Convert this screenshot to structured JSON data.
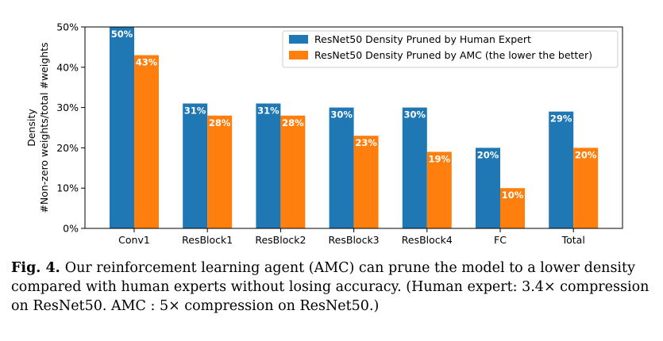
{
  "chart_data": {
    "type": "bar",
    "categories": [
      "Conv1",
      "ResBlock1",
      "ResBlock2",
      "ResBlock3",
      "ResBlock4",
      "FC",
      "Total"
    ],
    "series": [
      {
        "name": "ResNet50 Density Pruned by Human Expert",
        "values": [
          50,
          31,
          31,
          30,
          30,
          20,
          29
        ],
        "labels": [
          "50%",
          "31%",
          "31%",
          "30%",
          "30%",
          "20%",
          "29%"
        ],
        "color": "#1f77b4"
      },
      {
        "name": "ResNet50 Density Pruned by AMC (the lower the better)",
        "values": [
          43,
          28,
          28,
          23,
          19,
          10,
          20
        ],
        "labels": [
          "43%",
          "28%",
          "28%",
          "23%",
          "19%",
          "10%",
          "20%"
        ],
        "color": "#ff7f0e"
      }
    ],
    "ylabel_line1": "Density",
    "ylabel_line2": "#Non-zero weights/total #weights",
    "yticks": [
      "0%",
      "10%",
      "20%",
      "30%",
      "40%",
      "50%"
    ],
    "ylim": [
      0,
      50
    ],
    "legend_position": "top-right",
    "grid": false
  },
  "caption": {
    "label": "Fig. 4.",
    "text": "Our reinforcement learning agent (AMC) can prune the model to a lower density compared with human experts without losing accuracy. (Human expert: 3.4× compression on ResNet50. AMC : 5× compression on ResNet50.)"
  }
}
